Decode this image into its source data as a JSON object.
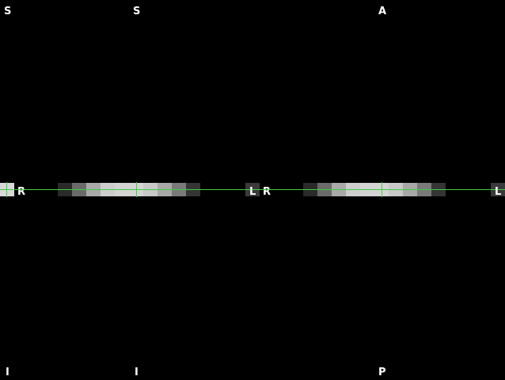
{
  "viewports": {
    "left": {
      "orientation": {
        "top": "S",
        "bottom": "I",
        "right": "R"
      },
      "slab_shades": [
        "#d8d8d8"
      ]
    },
    "coronal": {
      "orientation": {
        "top": "S",
        "bottom": "I",
        "left": "R",
        "right": "L"
      },
      "slab_shades": [
        "#2a2a2a",
        "#6a6a6a",
        "#a9a9a9",
        "#cdcdcd",
        "#d4d4d4",
        "#d4d4d4",
        "#c8c8c8",
        "#a8a8a8",
        "#7a7a7a",
        "#353535"
      ],
      "edge_shade": "#3a3a3a"
    },
    "axial": {
      "orientation": {
        "top": "A",
        "bottom": "P",
        "left": "R",
        "right": "L"
      },
      "slab_shades": [
        "#2a2a2a",
        "#6a6a6a",
        "#a9a9a9",
        "#cdcdcd",
        "#d4d4d4",
        "#d4d4d4",
        "#c8c8c8",
        "#a8a8a8",
        "#7a7a7a",
        "#353535"
      ],
      "edge_shade": "#3a3a3a"
    }
  },
  "colors": {
    "background": "#000000",
    "crosshair": "#3ecf3e",
    "orientation_text": "#ffffff"
  }
}
